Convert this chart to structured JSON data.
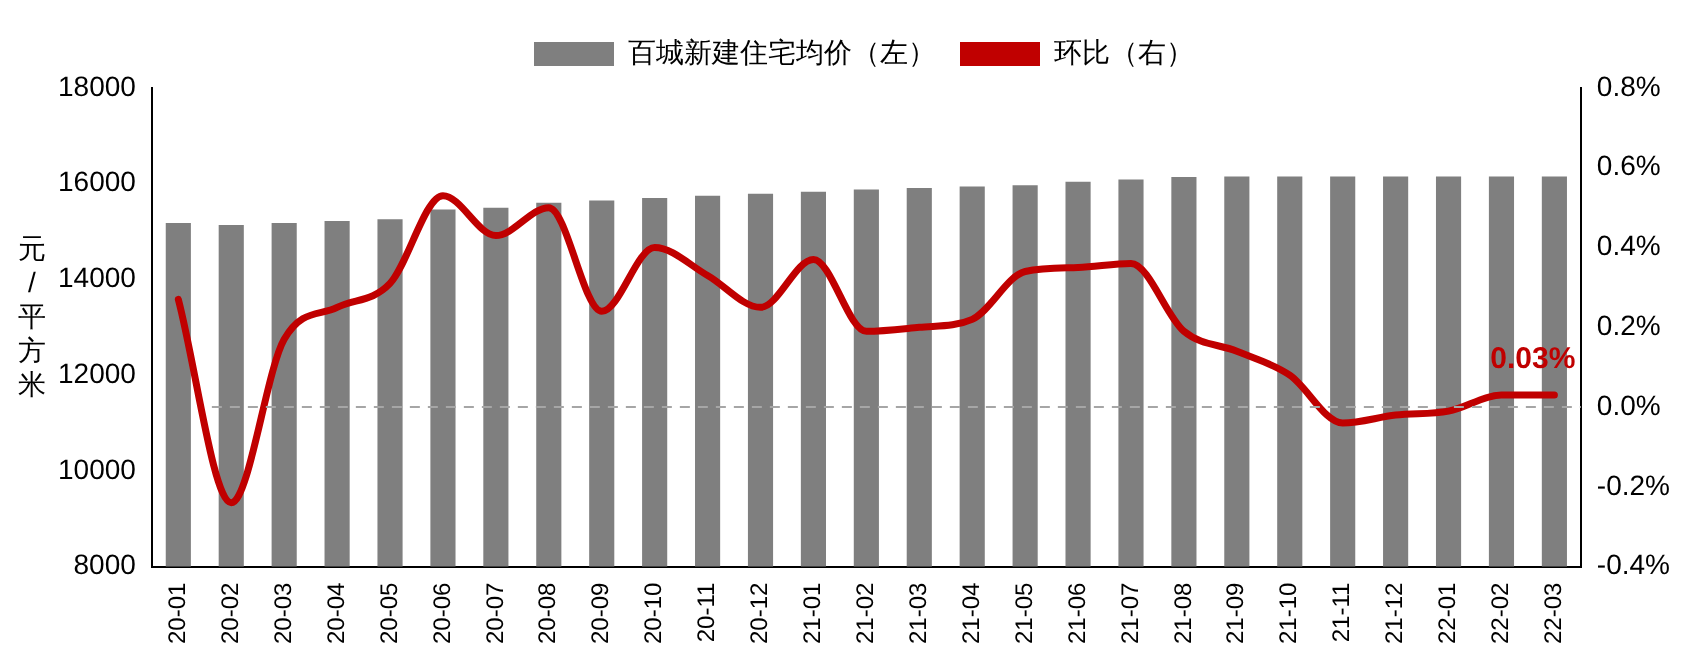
{
  "chart_data": {
    "type": "bar",
    "categories": [
      "20-01",
      "20-02",
      "20-03",
      "20-04",
      "20-05",
      "20-06",
      "20-07",
      "20-08",
      "20-09",
      "20-10",
      "20-11",
      "20-12",
      "21-01",
      "21-02",
      "21-03",
      "21-04",
      "21-05",
      "21-06",
      "21-07",
      "21-08",
      "21-09",
      "21-10",
      "21-11",
      "21-12",
      "22-01",
      "22-02",
      "22-03"
    ],
    "series": [
      {
        "name": "百城新建住宅均价（左）",
        "color": "#7f7f7f",
        "values": [
          15180,
          15140,
          15180,
          15220,
          15260,
          15460,
          15500,
          15600,
          15650,
          15700,
          15750,
          15790,
          15830,
          15880,
          15910,
          15940,
          15970,
          16040,
          16090,
          16140,
          16150,
          16150,
          16150,
          16150,
          16150,
          16150,
          16150
        ]
      },
      {
        "name": "环比（右）",
        "type": "line",
        "axis": "y2",
        "color": "#c00000",
        "values": [
          0.27,
          -0.24,
          0.17,
          0.25,
          0.31,
          0.53,
          0.43,
          0.5,
          0.24,
          0.4,
          0.33,
          0.25,
          0.37,
          0.19,
          0.2,
          0.22,
          0.34,
          0.35,
          0.36,
          0.19,
          0.14,
          0.08,
          -0.04,
          -0.02,
          -0.01,
          0.03,
          0.03
        ],
        "value_labels": [
          null,
          null,
          null,
          null,
          null,
          null,
          null,
          null,
          null,
          null,
          null,
          null,
          null,
          null,
          null,
          null,
          null,
          null,
          null,
          null,
          null,
          null,
          null,
          null,
          null,
          null,
          "0.03%"
        ]
      }
    ],
    "ylabel": "元/平方米",
    "ylim": [
      8000,
      18000
    ],
    "yticks": [
      8000,
      10000,
      12000,
      14000,
      16000,
      18000
    ],
    "y2lim": [
      -0.4,
      0.8
    ],
    "y2ticks": [
      {
        "value": -0.4,
        "label": "-0.4%"
      },
      {
        "value": -0.2,
        "label": "-0.2%"
      },
      {
        "value": 0,
        "label": "0.0%"
      },
      {
        "value": 0.2,
        "label": "0.2%"
      },
      {
        "value": 0.4,
        "label": "0.4%"
      },
      {
        "value": 0.6,
        "label": "0.6%"
      },
      {
        "value": 0.8,
        "label": "0.8%"
      }
    ],
    "ref_lines": [
      {
        "axis": "y2",
        "value": 0,
        "color": "#a6a6a6",
        "line_style": "dashed"
      }
    ],
    "grid": false,
    "legend": "top",
    "marker": "none",
    "line_style": "solid"
  }
}
